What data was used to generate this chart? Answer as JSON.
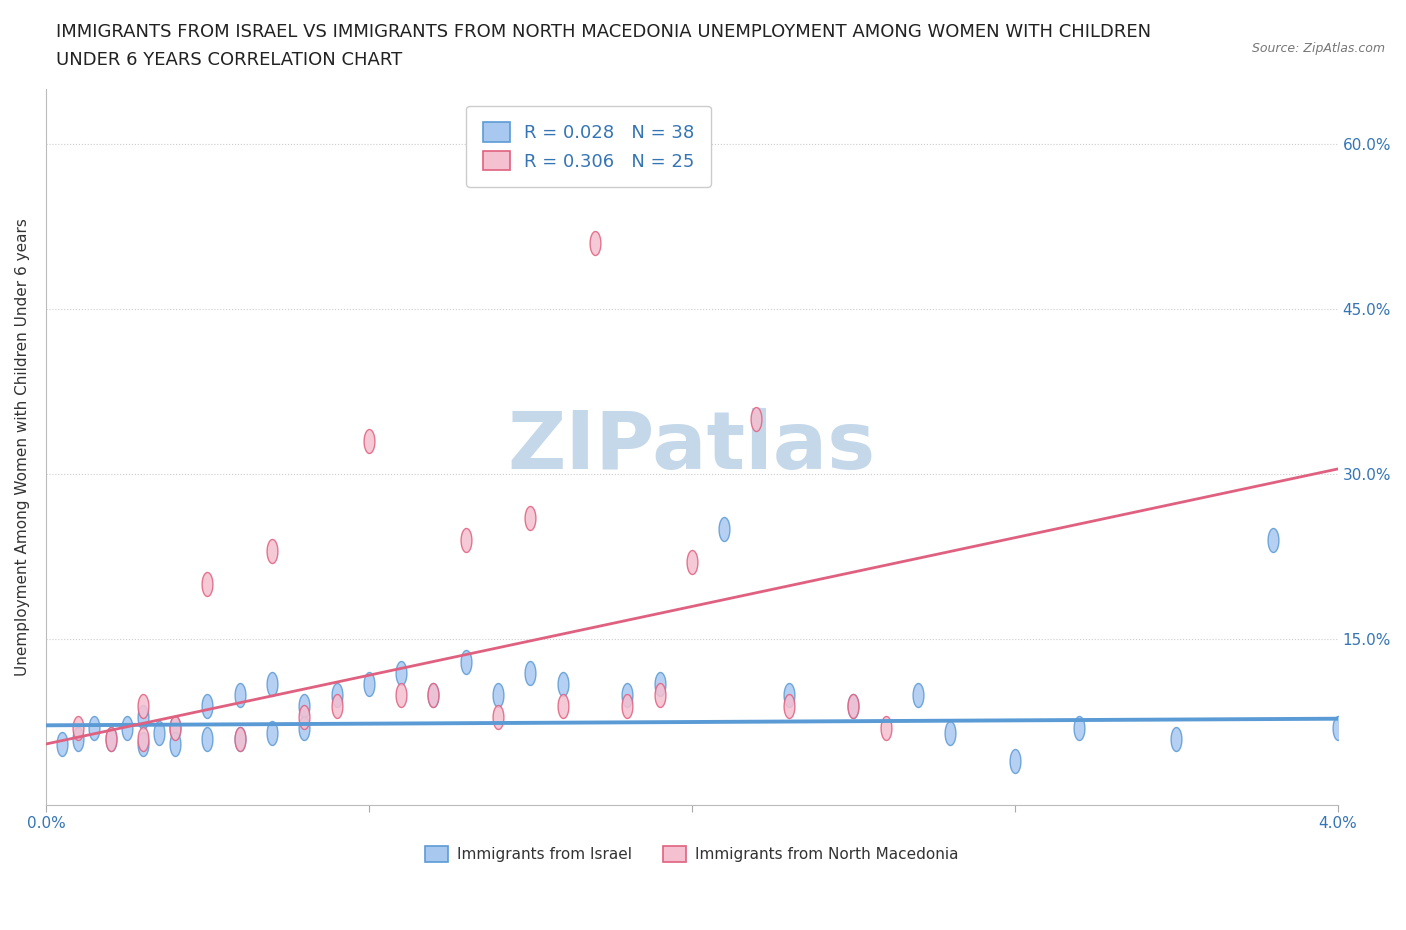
{
  "title_line1": "IMMIGRANTS FROM ISRAEL VS IMMIGRANTS FROM NORTH MACEDONIA UNEMPLOYMENT AMONG WOMEN WITH CHILDREN",
  "title_line2": "UNDER 6 YEARS CORRELATION CHART",
  "source": "Source: ZipAtlas.com",
  "ylabel": "Unemployment Among Women with Children Under 6 years",
  "xlim": [
    0.0,
    0.04
  ],
  "ylim": [
    0.0,
    0.65
  ],
  "xticks": [
    0.0,
    0.01,
    0.02,
    0.03,
    0.04
  ],
  "xtick_labels": [
    "0.0%",
    "",
    "",
    "",
    "4.0%"
  ],
  "yticks": [
    0.0,
    0.15,
    0.3,
    0.45,
    0.6
  ],
  "right_ytick_labels": [
    "",
    "15.0%",
    "30.0%",
    "45.0%",
    "60.0%"
  ],
  "israel_color": "#a8c8f0",
  "israel_edge_color": "#5b9bd5",
  "macedonia_color": "#f5c0d0",
  "macedonia_edge_color": "#e06080",
  "israel_R": "0.028",
  "israel_N": "38",
  "macedonia_R": "0.306",
  "macedonia_N": "25",
  "israel_scatter_x": [
    0.0005,
    0.001,
    0.0015,
    0.002,
    0.0025,
    0.003,
    0.003,
    0.0035,
    0.004,
    0.004,
    0.005,
    0.005,
    0.006,
    0.006,
    0.007,
    0.007,
    0.008,
    0.008,
    0.009,
    0.01,
    0.011,
    0.012,
    0.013,
    0.014,
    0.015,
    0.016,
    0.018,
    0.019,
    0.021,
    0.023,
    0.025,
    0.027,
    0.028,
    0.03,
    0.032,
    0.035,
    0.038,
    0.04
  ],
  "israel_scatter_y": [
    0.055,
    0.06,
    0.07,
    0.06,
    0.07,
    0.08,
    0.055,
    0.065,
    0.07,
    0.055,
    0.09,
    0.06,
    0.1,
    0.06,
    0.11,
    0.065,
    0.09,
    0.07,
    0.1,
    0.11,
    0.12,
    0.1,
    0.13,
    0.1,
    0.12,
    0.11,
    0.1,
    0.11,
    0.25,
    0.1,
    0.09,
    0.1,
    0.065,
    0.04,
    0.07,
    0.06,
    0.24,
    0.07
  ],
  "macedonia_scatter_x": [
    0.001,
    0.002,
    0.003,
    0.003,
    0.004,
    0.005,
    0.006,
    0.007,
    0.008,
    0.009,
    0.01,
    0.011,
    0.012,
    0.013,
    0.014,
    0.015,
    0.016,
    0.017,
    0.018,
    0.019,
    0.02,
    0.022,
    0.023,
    0.025,
    0.026
  ],
  "macedonia_scatter_y": [
    0.07,
    0.06,
    0.09,
    0.06,
    0.07,
    0.2,
    0.06,
    0.23,
    0.08,
    0.09,
    0.33,
    0.1,
    0.1,
    0.24,
    0.08,
    0.26,
    0.09,
    0.51,
    0.09,
    0.1,
    0.22,
    0.35,
    0.09,
    0.09,
    0.07
  ],
  "israel_trend_x": [
    0.0,
    0.04
  ],
  "israel_trend_y": [
    0.072,
    0.078
  ],
  "macedonia_trend_x": [
    0.0,
    0.04
  ],
  "macedonia_trend_y": [
    0.055,
    0.305
  ],
  "background_color": "#ffffff",
  "grid_color": "#cccccc",
  "watermark": "ZIPatlas",
  "watermark_color": "#c5d8ea",
  "title_fontsize": 13,
  "axis_label_fontsize": 11,
  "tick_fontsize": 11,
  "legend_fontsize": 13,
  "legend_label_israel": "Immigrants from Israel",
  "legend_label_macedonia": "Immigrants from North Macedonia"
}
